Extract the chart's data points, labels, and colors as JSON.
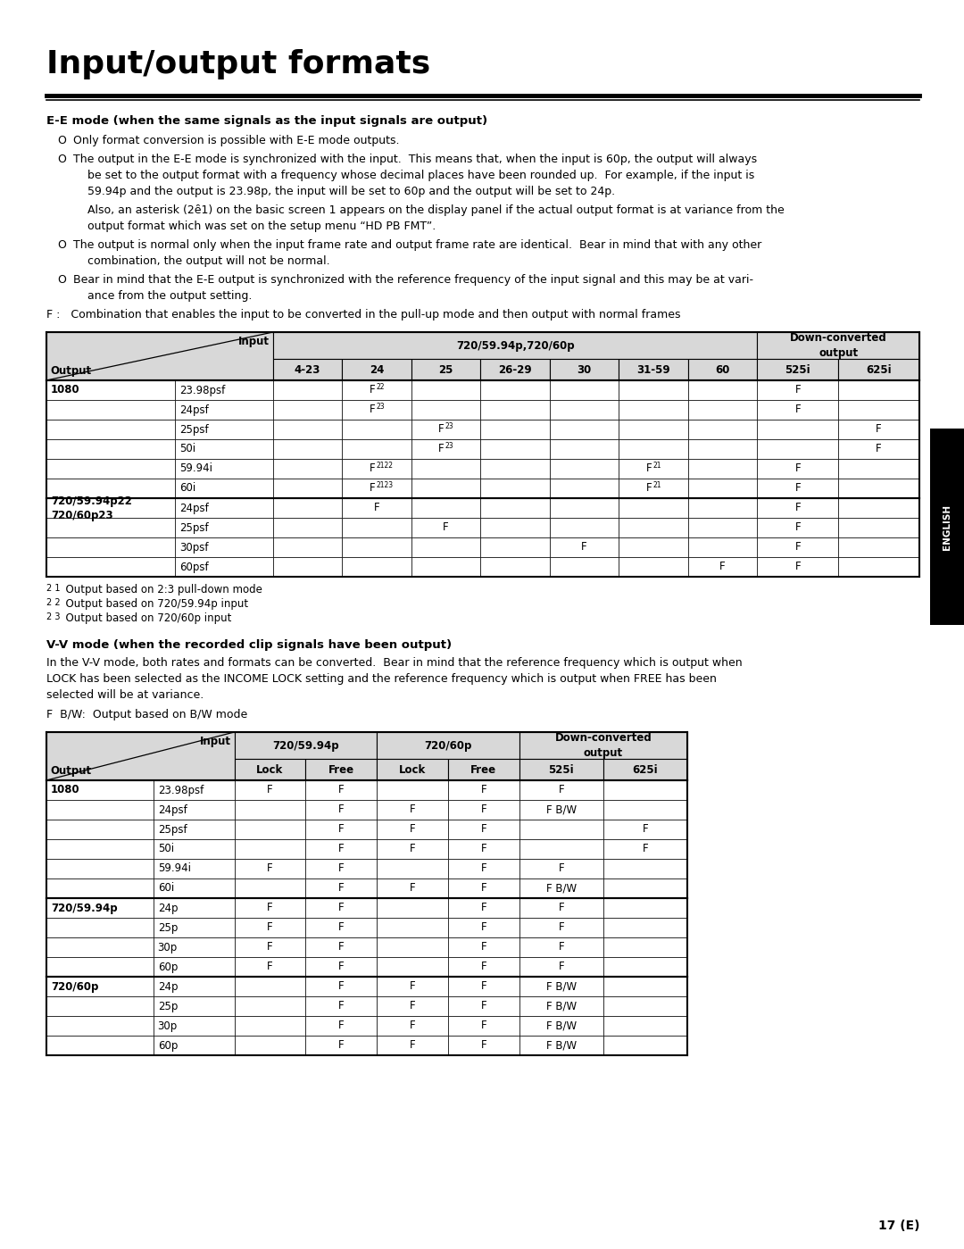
{
  "title": "Input/output formats",
  "page_number": "17 (E)",
  "background_color": "#ffffff",
  "sidebar_text": "ENGLISH",
  "ee_section_heading": "E-E mode (when the same signals as the input signals are output)",
  "vv_section_heading": "V-V mode (when the recorded clip signals have been output)",
  "ee_f_note": "F :   Combination that enables the input to be converted in the pull-up mode and then output with normal frames",
  "vv_f_note": "F  B/W:  Output based on B/W mode",
  "ee_footnotes": [
    "2 1   Output based on 2:3 pull-down mode",
    "2 2   Output based on 720/59.94p input",
    "2 3   Output based on 720/60p input"
  ],
  "ee_rows": [
    [
      "1080",
      "23.98psf",
      "",
      "F 22",
      "",
      "",
      "",
      "",
      "",
      "F",
      ""
    ],
    [
      "",
      "24psf",
      "",
      "F 23",
      "",
      "",
      "",
      "",
      "",
      "F",
      ""
    ],
    [
      "",
      "25psf",
      "",
      "",
      "F 23",
      "",
      "",
      "",
      "",
      "",
      "F"
    ],
    [
      "",
      "50i",
      "",
      "",
      "F 23",
      "",
      "",
      "",
      "",
      "",
      "F"
    ],
    [
      "",
      "59.94i",
      "",
      "F 2122",
      "",
      "",
      "",
      "F 21",
      "",
      "F",
      ""
    ],
    [
      "",
      "60i",
      "",
      "F 2123",
      "",
      "",
      "",
      "F 21",
      "",
      "F",
      ""
    ],
    [
      "720/59.94p22\n720/60p23",
      "24psf",
      "",
      "F",
      "",
      "",
      "",
      "",
      "",
      "F",
      ""
    ],
    [
      "",
      "25psf",
      "",
      "",
      "F",
      "",
      "",
      "",
      "",
      "F",
      ""
    ],
    [
      "",
      "30psf",
      "",
      "",
      "",
      "",
      "F",
      "",
      "",
      "F",
      ""
    ],
    [
      "",
      "60psf",
      "",
      "",
      "",
      "",
      "",
      "",
      "F",
      "F",
      ""
    ]
  ],
  "vv_rows": [
    [
      "1080",
      "23.98psf",
      "F",
      "F",
      "",
      "F",
      "F",
      ""
    ],
    [
      "",
      "24psf",
      "",
      "F",
      "F",
      "F",
      "F B/W",
      ""
    ],
    [
      "",
      "25psf",
      "",
      "F",
      "F",
      "F",
      "",
      "F"
    ],
    [
      "",
      "50i",
      "",
      "F",
      "F",
      "F",
      "",
      "F"
    ],
    [
      "",
      "59.94i",
      "F",
      "F",
      "",
      "F",
      "F",
      ""
    ],
    [
      "",
      "60i",
      "",
      "F",
      "F",
      "F",
      "F B/W",
      ""
    ],
    [
      "720/59.94p",
      "24p",
      "F",
      "F",
      "",
      "F",
      "F",
      ""
    ],
    [
      "",
      "25p",
      "F",
      "F",
      "",
      "F",
      "F",
      ""
    ],
    [
      "",
      "30p",
      "F",
      "F",
      "",
      "F",
      "F",
      ""
    ],
    [
      "",
      "60p",
      "F",
      "F",
      "",
      "F",
      "F",
      ""
    ],
    [
      "720/60p",
      "24p",
      "",
      "F",
      "F",
      "F",
      "F B/W",
      ""
    ],
    [
      "",
      "25p",
      "",
      "F",
      "F",
      "F",
      "F B/W",
      ""
    ],
    [
      "",
      "30p",
      "",
      "F",
      "F",
      "F",
      "F B/W",
      ""
    ],
    [
      "",
      "60p",
      "",
      "F",
      "F",
      "F",
      "F B/W",
      ""
    ]
  ]
}
